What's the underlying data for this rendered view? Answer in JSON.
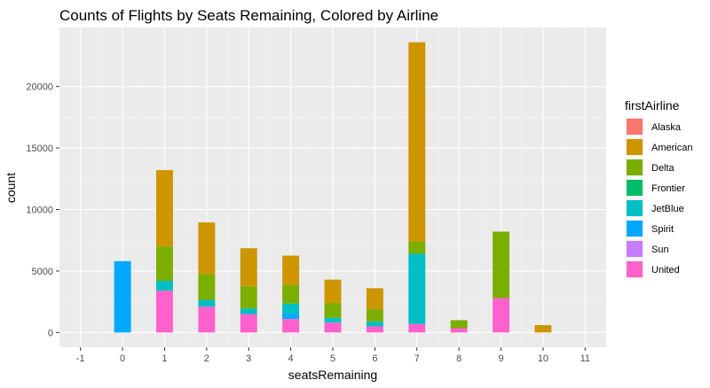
{
  "chart_data": {
    "type": "bar",
    "stacked": true,
    "title": "Counts of Flights by Seats Remaining, Colored by Airline",
    "xlabel": "seatsRemaining",
    "ylabel": "count",
    "x_ticks": [
      "-1",
      "0",
      "1",
      "2",
      "3",
      "4",
      "5",
      "6",
      "7",
      "8",
      "9",
      "10",
      "11"
    ],
    "y_ticks": [
      "0",
      "5000",
      "10000",
      "15000",
      "20000"
    ],
    "xlim": [
      -1.5,
      11.5
    ],
    "ylim": [
      -1200,
      24800
    ],
    "grid": true,
    "legend": {
      "title": "firstAirline",
      "placement": "right",
      "entries": [
        {
          "name": "Alaska",
          "color": "#F8766D"
        },
        {
          "name": "American",
          "color": "#CD9600"
        },
        {
          "name": "Delta",
          "color": "#7CAE00"
        },
        {
          "name": "Frontier",
          "color": "#00BE67"
        },
        {
          "name": "JetBlue",
          "color": "#00BFC4"
        },
        {
          "name": "Spirit",
          "color": "#00A9FF"
        },
        {
          "name": "Sun",
          "color": "#C77CFF"
        },
        {
          "name": "United",
          "color": "#FF61CC"
        }
      ]
    },
    "categories": [
      0,
      1,
      2,
      3,
      4,
      5,
      6,
      7,
      8,
      9,
      10
    ],
    "stack_order_top_to_bottom": [
      "Alaska",
      "American",
      "Delta",
      "Frontier",
      "JetBlue",
      "Spirit",
      "Sun",
      "United"
    ],
    "series": [
      {
        "name": "Alaska",
        "values": [
          0,
          0,
          0,
          0,
          0,
          0,
          0,
          0,
          0,
          0,
          0
        ]
      },
      {
        "name": "American",
        "values": [
          0,
          6200,
          4200,
          3100,
          2400,
          1900,
          1700,
          16200,
          0,
          0,
          600
        ]
      },
      {
        "name": "Delta",
        "values": [
          0,
          2800,
          2100,
          1800,
          1500,
          1200,
          1000,
          1000,
          650,
          5400,
          0
        ]
      },
      {
        "name": "Frontier",
        "values": [
          0,
          0,
          0,
          0,
          0,
          0,
          0,
          0,
          0,
          0,
          0
        ]
      },
      {
        "name": "JetBlue",
        "values": [
          0,
          800,
          550,
          450,
          850,
          400,
          400,
          5700,
          0,
          0,
          0
        ]
      },
      {
        "name": "Spirit",
        "values": [
          5800,
          0,
          0,
          0,
          400,
          0,
          0,
          0,
          0,
          0,
          0
        ]
      },
      {
        "name": "Sun",
        "values": [
          0,
          0,
          0,
          0,
          0,
          0,
          0,
          0,
          0,
          0,
          0
        ]
      },
      {
        "name": "United",
        "values": [
          0,
          3400,
          2100,
          1500,
          1100,
          800,
          500,
          700,
          350,
          2800,
          0
        ]
      }
    ]
  }
}
